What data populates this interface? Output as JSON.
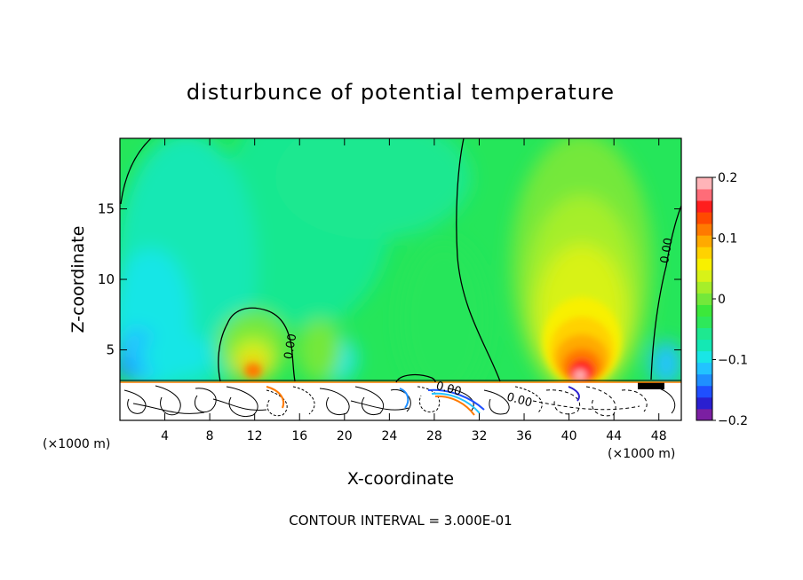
{
  "chart_data": {
    "type": "heatmap",
    "title": "disturbunce of potential temperature",
    "xlabel": "X-coordinate",
    "ylabel": "Z-coordinate",
    "x_unit": "(×1000 m)",
    "x_unit_right": "(×1000 m)",
    "xlim": [
      0,
      50
    ],
    "ylim": [
      0,
      20
    ],
    "x_ticks": [
      4,
      8,
      12,
      16,
      20,
      24,
      28,
      32,
      36,
      40,
      44,
      48
    ],
    "y_ticks": [
      5,
      10,
      15
    ],
    "footer": "CONTOUR INTERVAL = 3.000E-01",
    "colorbar": {
      "range": [
        -0.2,
        0.2
      ],
      "tick_values": [
        0.2,
        0.1,
        0,
        -0.1,
        -0.2
      ],
      "tick_labels": [
        "0.2",
        "0.1",
        "0",
        "−0.1",
        "−0.2"
      ],
      "colors": [
        "#7b1fa2",
        "#2a1fd0",
        "#1f4fff",
        "#1f8fff",
        "#22c3ff",
        "#19e6e6",
        "#14e8b4",
        "#1ee890",
        "#2ee85a",
        "#3ce83a",
        "#74e83a",
        "#a6ee2a",
        "#d8f218",
        "#f8f000",
        "#ffd200",
        "#ffaa00",
        "#ff7a00",
        "#ff4a00",
        "#ff1e1e",
        "#ff6c78",
        "#ffb4b8"
      ]
    },
    "contour_labels": [
      {
        "text": "0.00",
        "x": 15.5,
        "z": 5.2
      },
      {
        "text": "0.00",
        "x": 49.0,
        "z": 12.0
      },
      {
        "text": "0.00",
        "x": 29.2,
        "z": 2.0
      },
      {
        "text": "0.00",
        "x": 35.5,
        "z": 1.2
      }
    ],
    "features": [
      {
        "name": "warm anomaly",
        "x": 41.2,
        "z": 4.0,
        "peak": 0.19
      },
      {
        "name": "cold anomaly",
        "x": 2.0,
        "z": 5.0,
        "peak": -0.08
      }
    ]
  }
}
